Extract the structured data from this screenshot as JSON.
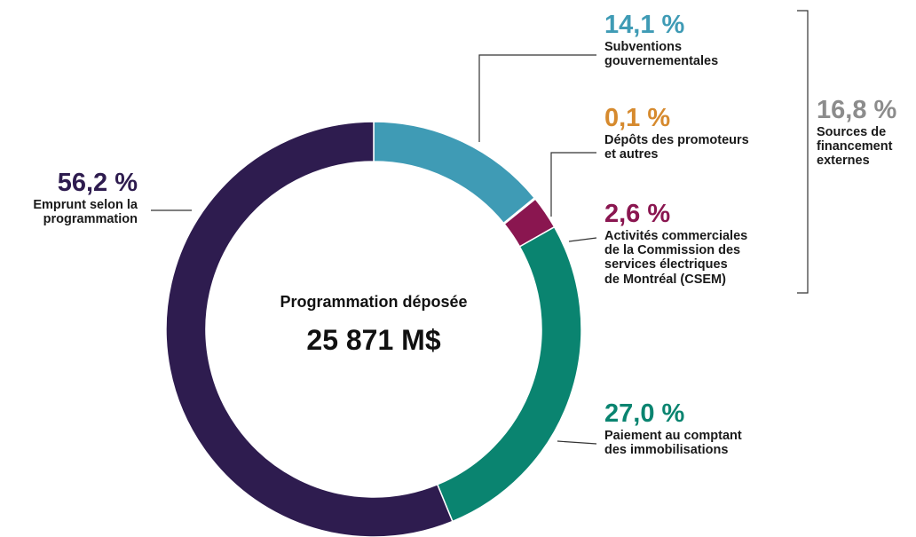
{
  "chart_data": {
    "type": "donut",
    "center_title": "Programmation déposée",
    "center_value": "25 871 M$",
    "categories": [
      "Subventions\ngouvernementales",
      "Dépôts des promoteurs\net autres",
      "Activités commerciales\nde la Commission des\nservices électriques\nde Montréal (CSEM)",
      "Paiement au comptant\ndes immobilisations",
      "Emprunt selon la\nprogrammation"
    ],
    "values": [
      14.1,
      0.1,
      2.6,
      27.0,
      56.2
    ],
    "value_labels": [
      "14,1 %",
      "0,1 %",
      "2,6 %",
      "27,0 %",
      "56,2 %"
    ],
    "colors": [
      "#3f9bb5",
      "#d68a2e",
      "#8a1650",
      "#0a8470",
      "#2e1c4f"
    ],
    "group": {
      "value": 16.8,
      "label": "16,8 %",
      "name": "Sources de\nfinancement\nexternes",
      "color": "#8c8c8c"
    }
  }
}
